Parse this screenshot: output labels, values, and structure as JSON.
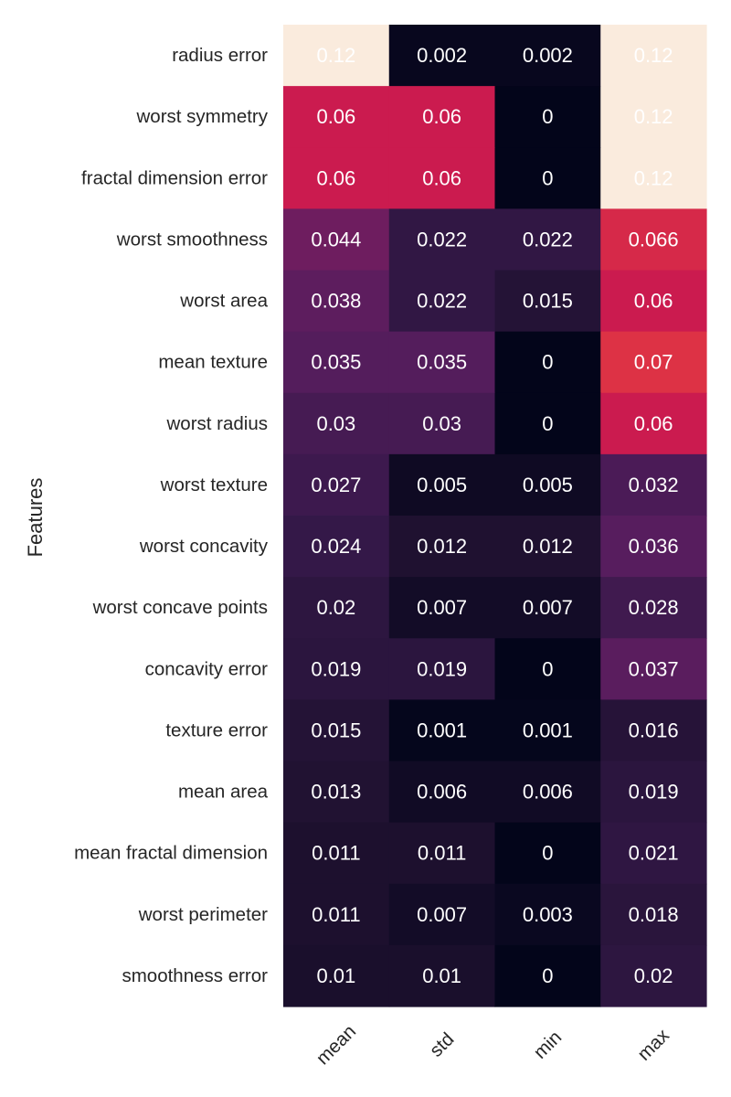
{
  "chart_data": {
    "type": "heatmap",
    "title": "",
    "xlabel": "",
    "ylabel": "Features",
    "columns": [
      "mean",
      "std",
      "min",
      "max"
    ],
    "rows": [
      "radius error",
      "worst symmetry",
      "fractal dimension error",
      "worst smoothness",
      "worst area",
      "mean texture",
      "worst radius",
      "worst texture",
      "worst concavity",
      "worst concave points",
      "concavity error",
      "texture error",
      "mean area",
      "mean fractal dimension",
      "worst perimeter",
      "smoothness error"
    ],
    "values": [
      [
        0.12,
        0.002,
        0.002,
        0.12
      ],
      [
        0.06,
        0.06,
        0,
        0.12
      ],
      [
        0.06,
        0.06,
        0,
        0.12
      ],
      [
        0.044,
        0.022,
        0.022,
        0.066
      ],
      [
        0.038,
        0.022,
        0.015,
        0.06
      ],
      [
        0.035,
        0.035,
        0,
        0.07
      ],
      [
        0.03,
        0.03,
        0,
        0.06
      ],
      [
        0.027,
        0.005,
        0.005,
        0.032
      ],
      [
        0.024,
        0.012,
        0.012,
        0.036
      ],
      [
        0.02,
        0.007,
        0.007,
        0.028
      ],
      [
        0.019,
        0.019,
        0,
        0.037
      ],
      [
        0.015,
        0.001,
        0.001,
        0.016
      ],
      [
        0.013,
        0.006,
        0.006,
        0.019
      ],
      [
        0.011,
        0.011,
        0,
        0.021
      ],
      [
        0.011,
        0.007,
        0.003,
        0.018
      ],
      [
        0.01,
        0.01,
        0,
        0.02
      ]
    ],
    "value_labels": [
      [
        "0.12",
        "0.002",
        "0.002",
        "0.12"
      ],
      [
        "0.06",
        "0.06",
        "0",
        "0.12"
      ],
      [
        "0.06",
        "0.06",
        "0",
        "0.12"
      ],
      [
        "0.044",
        "0.022",
        "0.022",
        "0.066"
      ],
      [
        "0.038",
        "0.022",
        "0.015",
        "0.06"
      ],
      [
        "0.035",
        "0.035",
        "0",
        "0.07"
      ],
      [
        "0.03",
        "0.03",
        "0",
        "0.06"
      ],
      [
        "0.027",
        "0.005",
        "0.005",
        "0.032"
      ],
      [
        "0.024",
        "0.012",
        "0.012",
        "0.036"
      ],
      [
        "0.02",
        "0.007",
        "0.007",
        "0.028"
      ],
      [
        "0.019",
        "0.019",
        "0",
        "0.037"
      ],
      [
        "0.015",
        "0.001",
        "0.001",
        "0.016"
      ],
      [
        "0.013",
        "0.006",
        "0.006",
        "0.019"
      ],
      [
        "0.011",
        "0.011",
        "0",
        "0.021"
      ],
      [
        "0.011",
        "0.007",
        "0.003",
        "0.018"
      ],
      [
        "0.01",
        "0.01",
        "0",
        "0.02"
      ]
    ],
    "color_range": [
      0,
      0.12
    ],
    "colormap": "rocket",
    "grid": false,
    "legend": "none",
    "annot_text_color": "#ffffff",
    "label_color": "#262626"
  }
}
